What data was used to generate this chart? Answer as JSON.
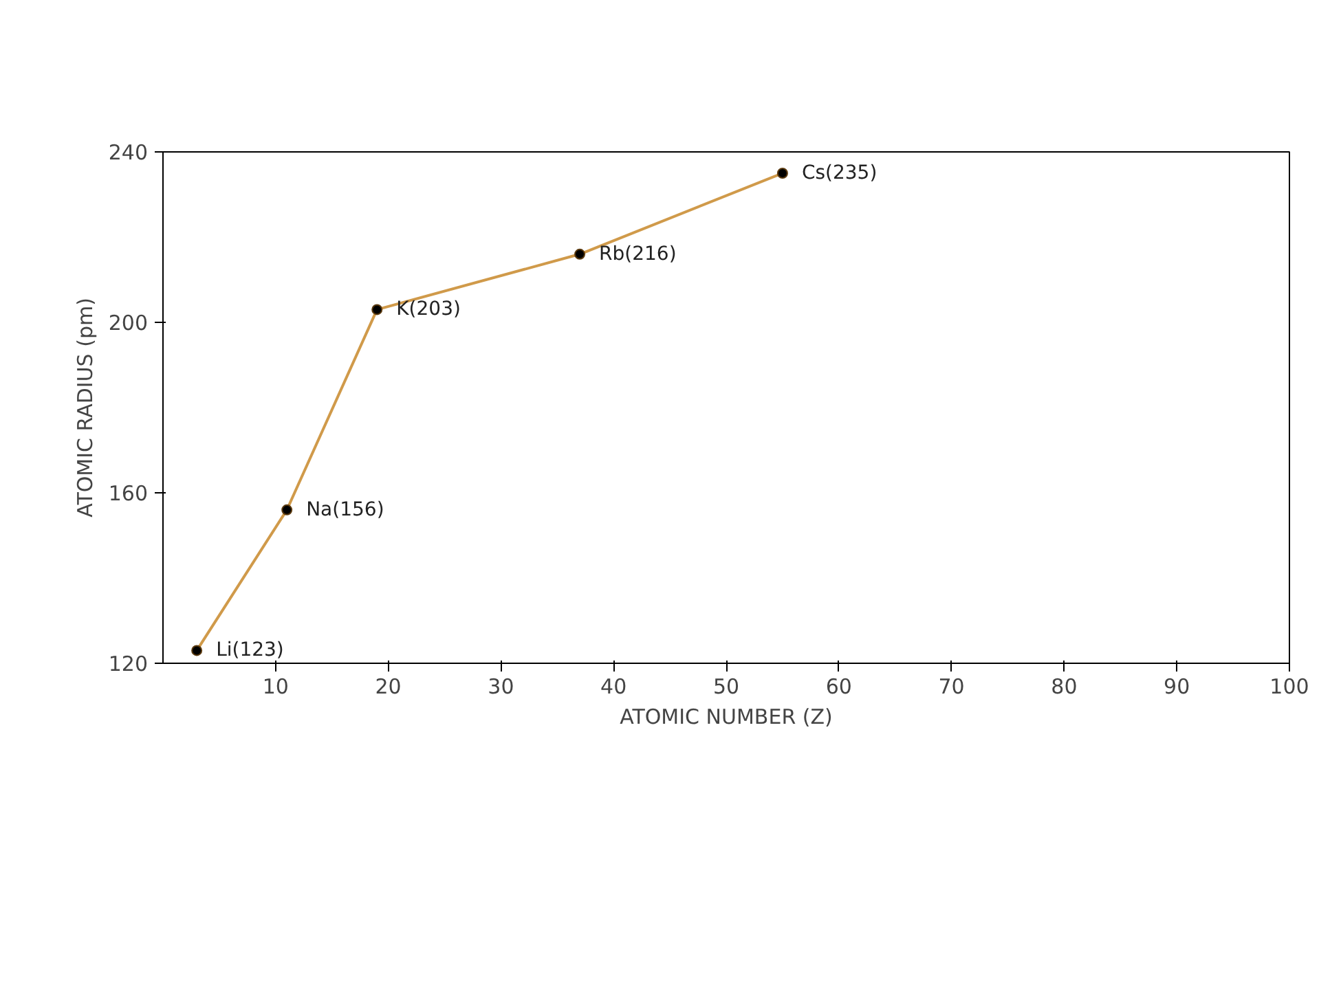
{
  "chart_data": {
    "type": "line",
    "xlabel": "ATOMIC NUMBER (Z)",
    "ylabel": "ATOMIC RADIUS (pm)",
    "x": [
      3,
      11,
      19,
      37,
      55
    ],
    "series": [
      {
        "color": "#d09a4a",
        "values": [
          123,
          156,
          203,
          216,
          235
        ],
        "value_labels": [
          "Li(123)",
          "Na(156)",
          "K(203)",
          "Rb(216)",
          "Cs(235)"
        ]
      }
    ],
    "xlim": [
      0,
      100
    ],
    "xticks": [
      10,
      20,
      30,
      40,
      50,
      60,
      70,
      80,
      90,
      100
    ],
    "ylim": [
      120,
      240
    ],
    "yticks": [
      120,
      160,
      200,
      240
    ],
    "marker": "circle",
    "line_style": "solid"
  }
}
